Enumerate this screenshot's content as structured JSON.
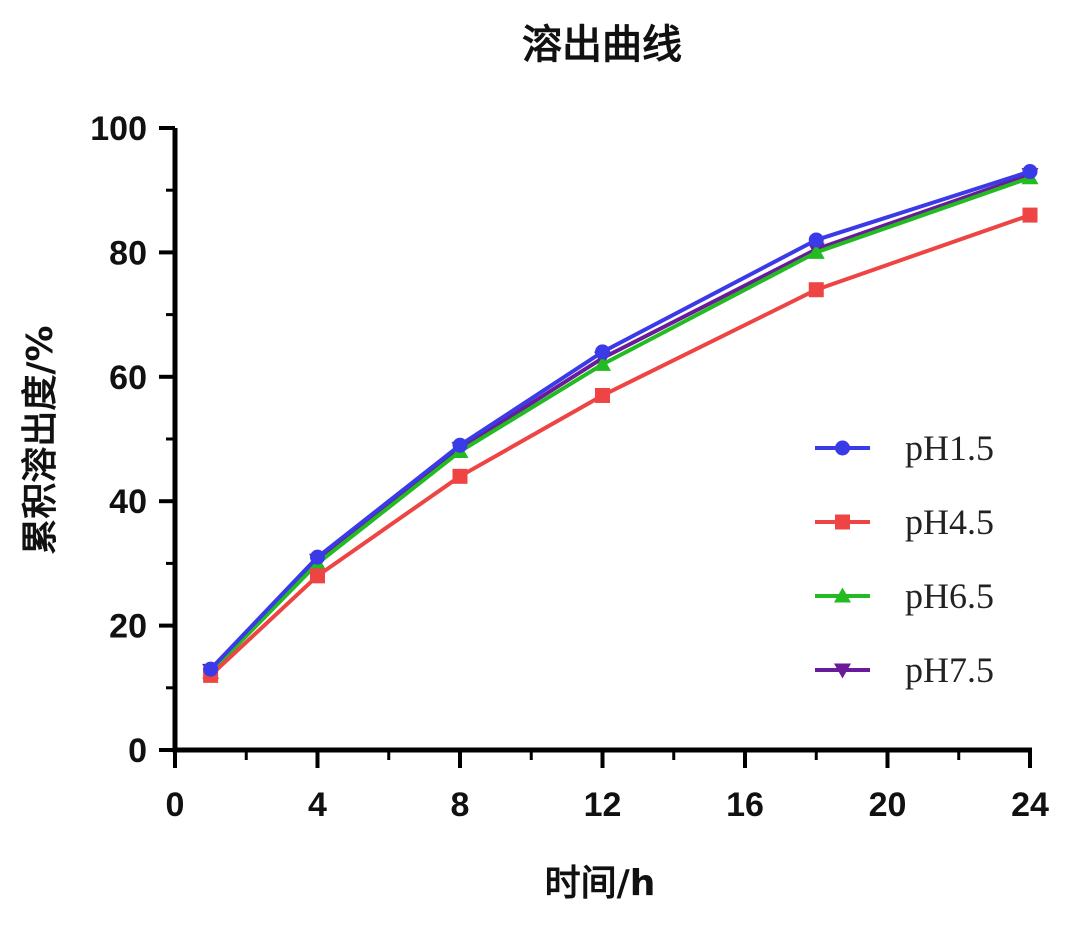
{
  "chart_data": {
    "type": "line",
    "title": "溶出曲线",
    "xlabel": "时间/h",
    "ylabel": "累积溶出度/%",
    "xlim": [
      0,
      24
    ],
    "ylim": [
      0,
      100
    ],
    "x_major_ticks": [
      0,
      4,
      8,
      12,
      16,
      20,
      24
    ],
    "x_tick_labels": [
      "0",
      "4",
      "8",
      "12",
      "16",
      "20",
      "24"
    ],
    "y_major_ticks": [
      0,
      20,
      40,
      60,
      80,
      100
    ],
    "y_tick_labels": [
      "0",
      "20",
      "40",
      "60",
      "80",
      "100"
    ],
    "x_minor_ticks": [
      2,
      6,
      10,
      14,
      18,
      22
    ],
    "y_minor_ticks": [
      10,
      30,
      50,
      70,
      90
    ],
    "x": [
      1,
      4,
      8,
      12,
      18,
      24
    ],
    "legend_position": "right",
    "grid": false,
    "series": [
      {
        "name": "pH1.5",
        "color": "#3a3ae8",
        "marker": "circle",
        "values": [
          13,
          31,
          49,
          64,
          82,
          93
        ]
      },
      {
        "name": "pH4.5",
        "color": "#ee4444",
        "marker": "square",
        "values": [
          12,
          28,
          44,
          57,
          74,
          86
        ]
      },
      {
        "name": "pH6.5",
        "color": "#22bb22",
        "marker": "triangle-up",
        "values": [
          12.5,
          30,
          48,
          62,
          80,
          92
        ]
      },
      {
        "name": "pH7.5",
        "color": "#6a1b9a",
        "marker": "triangle-down",
        "values": [
          12.8,
          30.5,
          48.5,
          63,
          80.5,
          92.5
        ]
      }
    ]
  }
}
